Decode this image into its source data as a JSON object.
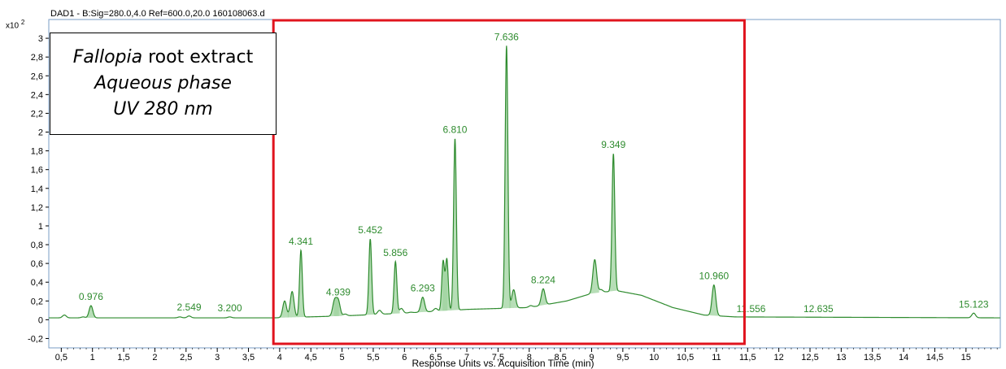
{
  "header": {
    "signal": "DAD1 - B:Sig=280.0,4.0  Ref=600.0,20.0 160108063.d",
    "y_multiplier_base": "x10",
    "y_multiplier_exp": "2"
  },
  "legend": {
    "line1_italic": "Fallopia",
    "line1_rest": " root extract",
    "line2": "Aqueous phase",
    "line3": "UV 280 nm"
  },
  "colors": {
    "trace": "#2e8b2e",
    "fill": "#9fd39f",
    "peak_label": "#2e8b2e",
    "highlight": "#e0141e",
    "axis": "#000000"
  },
  "chart_data": {
    "type": "line",
    "title": "DAD1 - B:Sig=280.0,4.0  Ref=600.0,20.0 160108063.d",
    "xlabel": "Response Units vs. Acquisition Time (min)",
    "ylabel": "",
    "y_multiplier": "x10 2",
    "xlim": [
      0.3,
      15.55
    ],
    "ylim": [
      -0.3,
      3.2
    ],
    "xticks": [
      "0,5",
      "1",
      "1,5",
      "2",
      "2,5",
      "3",
      "3,5",
      "4",
      "4,5",
      "5",
      "5,5",
      "6",
      "6,5",
      "7",
      "7,5",
      "8",
      "8,5",
      "9",
      "9,5",
      "10",
      "10,5",
      "11",
      "11,5",
      "12",
      "12,5",
      "13",
      "13,5",
      "14",
      "14,5",
      "15"
    ],
    "yticks": [
      "-0,2",
      "0",
      "0,2",
      "0,4",
      "0,6",
      "0,8",
      "1",
      "1,2",
      "1,4",
      "1,6",
      "1,8",
      "2",
      "2,2",
      "2,4",
      "2,6",
      "2,8",
      "3"
    ],
    "baseline": [
      [
        0.3,
        0.02
      ],
      [
        3.9,
        0.02
      ],
      [
        5.0,
        0.04
      ],
      [
        6.0,
        0.07
      ],
      [
        7.0,
        0.11
      ],
      [
        8.0,
        0.13
      ],
      [
        8.6,
        0.2
      ],
      [
        9.0,
        0.28
      ],
      [
        9.4,
        0.31
      ],
      [
        9.8,
        0.26
      ],
      [
        10.3,
        0.13
      ],
      [
        10.8,
        0.05
      ],
      [
        11.3,
        0.03
      ],
      [
        15.55,
        0.02
      ]
    ],
    "peaks": [
      {
        "rt": 0.976,
        "height": 0.15,
        "label": "0.976"
      },
      {
        "rt": 2.549,
        "height": 0.04,
        "label": "2.549"
      },
      {
        "rt": 3.2,
        "height": 0.03,
        "label": "3.200"
      },
      {
        "rt": 4.341,
        "height": 0.74,
        "label": "4.341"
      },
      {
        "rt": 4.939,
        "height": 0.2,
        "label": "4.939"
      },
      {
        "rt": 5.452,
        "height": 0.86,
        "label": "5.452"
      },
      {
        "rt": 5.856,
        "height": 0.62,
        "label": "5.856"
      },
      {
        "rt": 6.293,
        "height": 0.24,
        "label": "6.293"
      },
      {
        "rt": 6.81,
        "height": 1.93,
        "label": "6.810"
      },
      {
        "rt": 7.636,
        "height": 2.92,
        "label": "7.636"
      },
      {
        "rt": 8.224,
        "height": 0.33,
        "label": "8.224"
      },
      {
        "rt": 9.349,
        "height": 1.77,
        "label": "9.349"
      },
      {
        "rt": 10.96,
        "height": 0.37,
        "label": "10.960"
      },
      {
        "rt": 11.556,
        "height": 0.02,
        "label": "11.556"
      },
      {
        "rt": 12.635,
        "height": 0.02,
        "label": "12.635"
      },
      {
        "rt": 15.123,
        "height": 0.07,
        "label": "15.123"
      }
    ],
    "minor_peaks": [
      [
        0.55,
        0.05
      ],
      [
        0.85,
        0.03
      ],
      [
        2.4,
        0.03
      ],
      [
        3.1,
        0.02
      ],
      [
        4.08,
        0.2
      ],
      [
        4.2,
        0.3
      ],
      [
        4.88,
        0.2
      ],
      [
        5.05,
        0.06
      ],
      [
        5.6,
        0.1
      ],
      [
        5.95,
        0.12
      ],
      [
        6.1,
        0.08
      ],
      [
        6.5,
        0.12
      ],
      [
        6.62,
        0.62
      ],
      [
        6.68,
        0.64
      ],
      [
        7.75,
        0.32
      ],
      [
        8.02,
        0.15
      ],
      [
        8.38,
        0.17
      ],
      [
        8.7,
        0.1
      ],
      [
        9.05,
        0.64
      ],
      [
        9.15,
        0.32
      ],
      [
        9.55,
        0.1
      ],
      [
        9.8,
        0.08
      ],
      [
        15.05,
        0.02
      ]
    ],
    "highlight_box": {
      "x_start": 3.9,
      "x_end": 11.45
    }
  }
}
